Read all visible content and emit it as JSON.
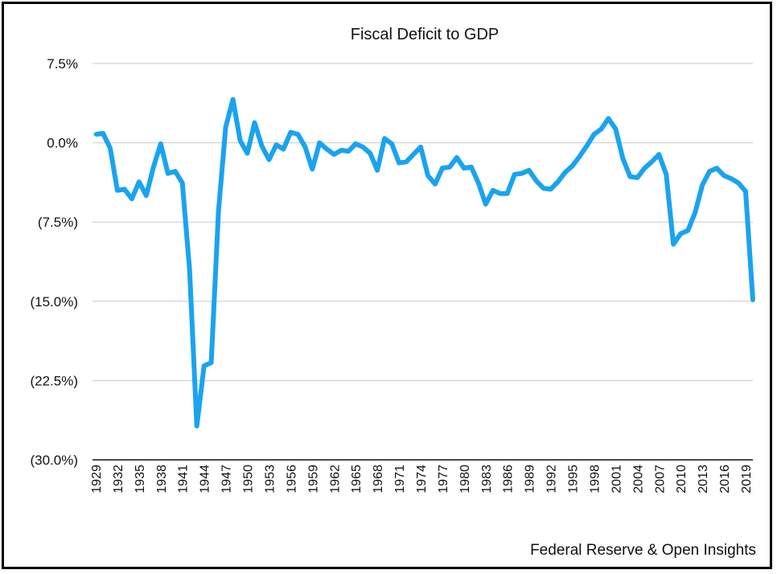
{
  "chart_data": {
    "type": "line",
    "title": "Fiscal Deficit to GDP",
    "xlabel": "",
    "ylabel": "",
    "ylim": [
      -30,
      7.5
    ],
    "yticks": [
      7.5,
      0,
      -7.5,
      -15,
      -22.5,
      -30
    ],
    "ytick_labels": [
      "7.5%",
      "0.0%",
      "(7.5%)",
      "(15.0%)",
      "(22.5%)",
      "(30.0%)"
    ],
    "xticks": [
      "1929",
      "1932",
      "1935",
      "1938",
      "1941",
      "1944",
      "1947",
      "1950",
      "1953",
      "1956",
      "1959",
      "1962",
      "1965",
      "1968",
      "1971",
      "1974",
      "1977",
      "1980",
      "1983",
      "1986",
      "1989",
      "1992",
      "1995",
      "1998",
      "2001",
      "2004",
      "2007",
      "2010",
      "2013",
      "2016",
      "2019"
    ],
    "grid": "horizontal",
    "line_color": "#1aa3f0",
    "series": [
      {
        "x": [
          1929,
          1930,
          1931,
          1932,
          1933,
          1934,
          1935,
          1936,
          1937,
          1938,
          1939,
          1940,
          1941,
          1942,
          1943,
          1944,
          1945,
          1946,
          1947,
          1948,
          1949,
          1950,
          1951,
          1952,
          1953,
          1954,
          1955,
          1956,
          1957,
          1958,
          1959,
          1960,
          1961,
          1962,
          1963,
          1964,
          1965,
          1966,
          1967,
          1968,
          1969,
          1970,
          1971,
          1972,
          1973,
          1974,
          1975,
          1976,
          1977,
          1978,
          1979,
          1980,
          1981,
          1982,
          1983,
          1984,
          1985,
          1986,
          1987,
          1988,
          1989,
          1990,
          1991,
          1992,
          1993,
          1994,
          1995,
          1996,
          1997,
          1998,
          1999,
          2000,
          2001,
          2002,
          2003,
          2004,
          2005,
          2006,
          2007,
          2008,
          2009,
          2010,
          2011,
          2012,
          2013,
          2014,
          2015,
          2016,
          2017,
          2018,
          2019,
          2020
        ],
        "values": [
          0.8,
          0.9,
          -0.5,
          -4.5,
          -4.4,
          -5.3,
          -3.7,
          -5.0,
          -2.3,
          -0.1,
          -2.9,
          -2.7,
          -3.8,
          -12.0,
          -26.8,
          -21.1,
          -20.8,
          -6.5,
          1.5,
          4.1,
          0.2,
          -1.0,
          1.9,
          -0.3,
          -1.6,
          -0.2,
          -0.6,
          1.0,
          0.8,
          -0.4,
          -2.5,
          0.0,
          -0.6,
          -1.1,
          -0.7,
          -0.8,
          -0.1,
          -0.4,
          -1.0,
          -2.6,
          0.4,
          -0.1,
          -1.9,
          -1.8,
          -1.1,
          -0.4,
          -3.1,
          -3.9,
          -2.4,
          -2.3,
          -1.4,
          -2.4,
          -2.3,
          -3.8,
          -5.8,
          -4.5,
          -4.8,
          -4.8,
          -3.0,
          -2.9,
          -2.6,
          -3.6,
          -4.3,
          -4.4,
          -3.7,
          -2.8,
          -2.2,
          -1.3,
          -0.3,
          0.8,
          1.3,
          2.3,
          1.3,
          -1.5,
          -3.2,
          -3.3,
          -2.4,
          -1.8,
          -1.1,
          -3.0,
          -9.6,
          -8.6,
          -8.3,
          -6.6,
          -4.0,
          -2.7,
          -2.4,
          -3.1,
          -3.4,
          -3.8,
          -4.6,
          -14.9
        ]
      }
    ]
  },
  "footer": {
    "source": "Federal Reserve & Open Insights"
  }
}
